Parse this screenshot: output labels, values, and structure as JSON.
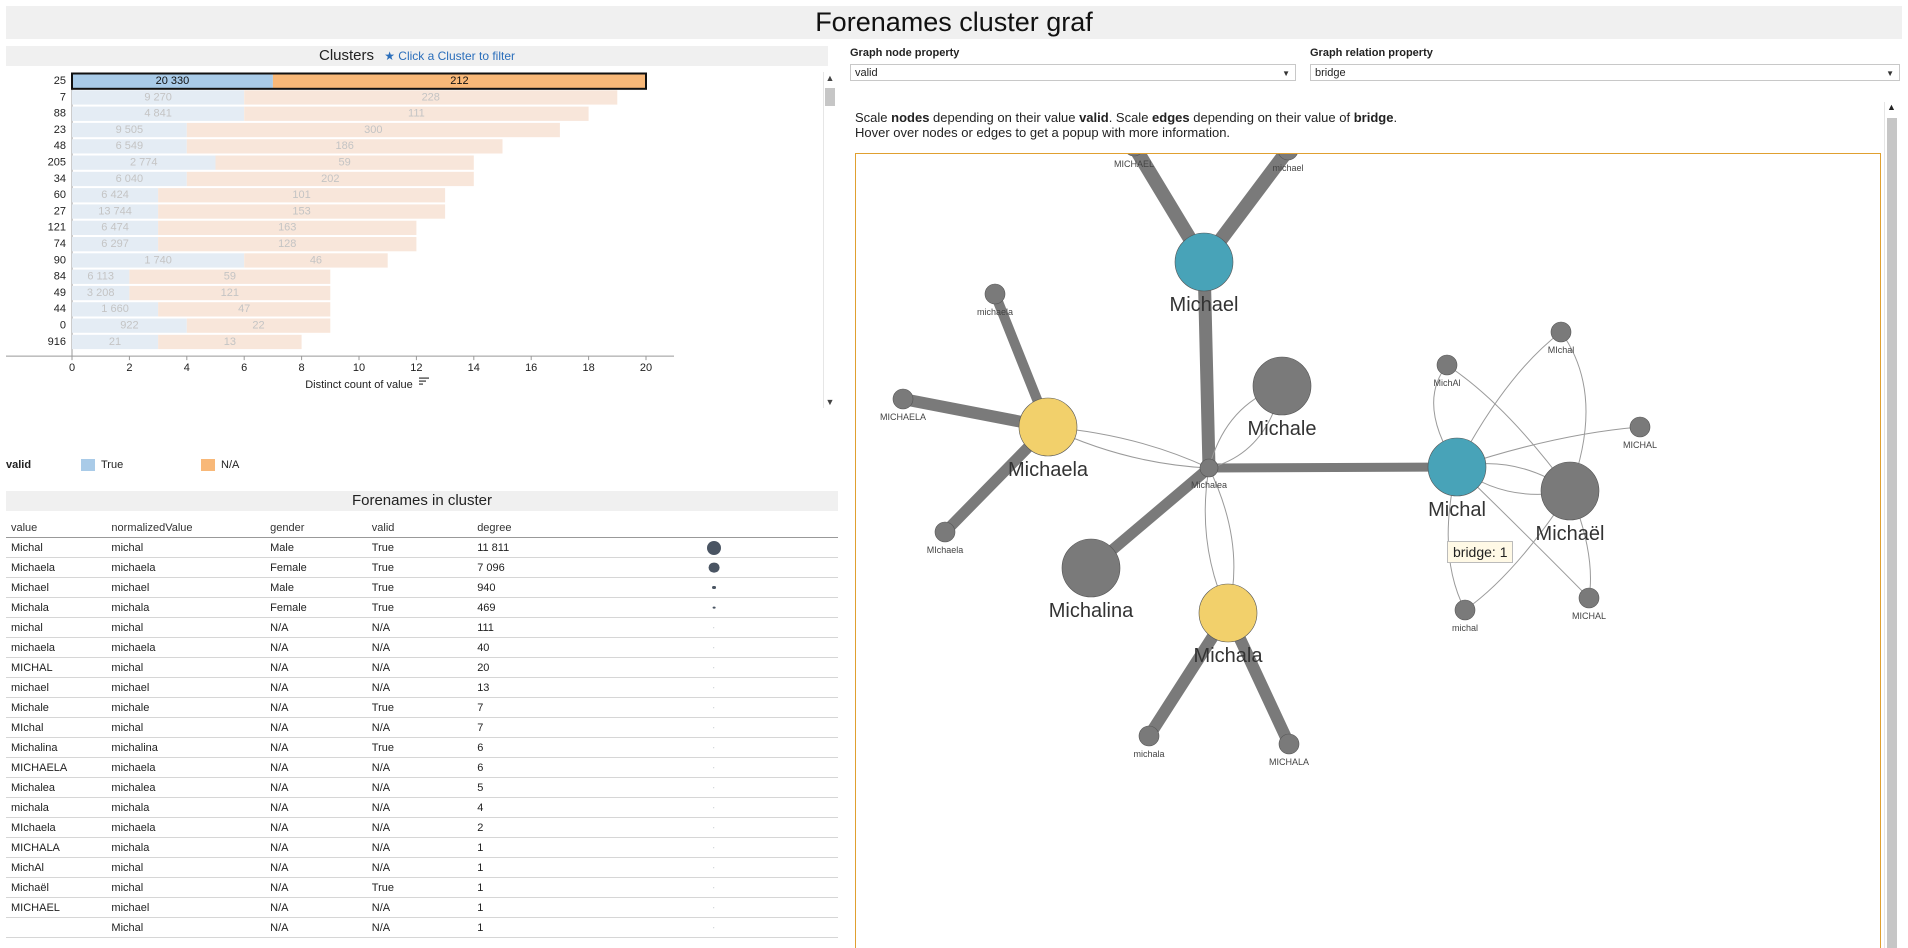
{
  "page": {
    "title": "Forenames cluster graf"
  },
  "clusters": {
    "title": "Clusters",
    "hint": "Click a Cluster to filter",
    "x_axis_label": "Distinct count of value",
    "legend_title": "valid",
    "legend": [
      {
        "label": "True",
        "color": "#a9cbe8"
      },
      {
        "label": "N/A",
        "color": "#f8b878"
      }
    ]
  },
  "chart_data": {
    "type": "bar",
    "orientation": "horizontal",
    "stacked": true,
    "categories": [
      "25",
      "7",
      "88",
      "23",
      "48",
      "205",
      "34",
      "60",
      "27",
      "121",
      "74",
      "90",
      "84",
      "49",
      "44",
      "0",
      "916"
    ],
    "series": [
      {
        "name": "True",
        "values": [
          7,
          6,
          6,
          4,
          4,
          5,
          4,
          3,
          3,
          3,
          3,
          6,
          2,
          2,
          3,
          4,
          3
        ],
        "labels": [
          "20 330",
          "9 270",
          "4 841",
          "9 505",
          "6 549",
          "2 774",
          "6 040",
          "6 424",
          "13 744",
          "6 474",
          "6 297",
          "1 740",
          "6 113",
          "3 208",
          "1 660",
          "922",
          "21"
        ]
      },
      {
        "name": "N/A",
        "values": [
          13,
          13,
          12,
          13,
          11,
          9,
          10,
          10,
          10,
          9,
          9,
          5,
          7,
          7,
          6,
          5,
          5
        ],
        "labels": [
          "212",
          "228",
          "111",
          "300",
          "186",
          "59",
          "202",
          "101",
          "153",
          "163",
          "128",
          "46",
          "59",
          "121",
          "47",
          "22",
          "13"
        ]
      }
    ],
    "selected_index": 0,
    "xlabel": "Distinct count of value",
    "xlim": [
      0,
      20
    ],
    "x_ticks": [
      0,
      2,
      4,
      6,
      8,
      10,
      12,
      14,
      16,
      18,
      20
    ],
    "colors": {
      "True": "#a9cbe8",
      "N/A": "#f8b878",
      "True_dim": "#e4ecf4",
      "N/A_dim": "#f8e6da"
    },
    "legend_position": "bottom-left"
  },
  "table": {
    "title": "Forenames in cluster",
    "columns": [
      "value",
      "normalizedValue",
      "gender",
      "valid",
      "degree"
    ],
    "rows": [
      {
        "value": "Michal",
        "norm": "michal",
        "gender": "Male",
        "valid": "True",
        "degree": "11 811",
        "dot": 11811
      },
      {
        "value": "Michaela",
        "norm": "michaela",
        "gender": "Female",
        "valid": "True",
        "degree": "7 096",
        "dot": 7096
      },
      {
        "value": "Michael",
        "norm": "michael",
        "gender": "Male",
        "valid": "True",
        "degree": "940",
        "dot": 940
      },
      {
        "value": "Michala",
        "norm": "michala",
        "gender": "Female",
        "valid": "True",
        "degree": "469",
        "dot": 469
      },
      {
        "value": "michal",
        "norm": "michal",
        "gender": "N/A",
        "valid": "N/A",
        "degree": "111",
        "dot": 111
      },
      {
        "value": "michaela",
        "norm": "michaela",
        "gender": "N/A",
        "valid": "N/A",
        "degree": "40",
        "dot": 40
      },
      {
        "value": "MICHAL",
        "norm": "michal",
        "gender": "N/A",
        "valid": "N/A",
        "degree": "20",
        "dot": 20
      },
      {
        "value": "michael",
        "norm": "michael",
        "gender": "N/A",
        "valid": "N/A",
        "degree": "13",
        "dot": 13
      },
      {
        "value": "Michale",
        "norm": "michale",
        "gender": "N/A",
        "valid": "True",
        "degree": "7",
        "dot": 7
      },
      {
        "value": "MIchal",
        "norm": "michal",
        "gender": "N/A",
        "valid": "N/A",
        "degree": "7",
        "dot": 7
      },
      {
        "value": "Michalina",
        "norm": "michalina",
        "gender": "N/A",
        "valid": "True",
        "degree": "6",
        "dot": 6
      },
      {
        "value": "MICHAELA",
        "norm": "michaela",
        "gender": "N/A",
        "valid": "N/A",
        "degree": "6",
        "dot": 6
      },
      {
        "value": "Michalea",
        "norm": "michalea",
        "gender": "N/A",
        "valid": "N/A",
        "degree": "5",
        "dot": 5
      },
      {
        "value": "michala",
        "norm": "michala",
        "gender": "N/A",
        "valid": "N/A",
        "degree": "4",
        "dot": 4
      },
      {
        "value": "MIchaela",
        "norm": "michaela",
        "gender": "N/A",
        "valid": "N/A",
        "degree": "2",
        "dot": 2
      },
      {
        "value": "MICHALA",
        "norm": "michala",
        "gender": "N/A",
        "valid": "N/A",
        "degree": "1",
        "dot": 1
      },
      {
        "value": "MichAl",
        "norm": "michal",
        "gender": "N/A",
        "valid": "N/A",
        "degree": "1",
        "dot": 1
      },
      {
        "value": "Michaël",
        "norm": "michal",
        "gender": "N/A",
        "valid": "True",
        "degree": "1",
        "dot": 1
      },
      {
        "value": "MICHAEL",
        "norm": "michael",
        "gender": "N/A",
        "valid": "N/A",
        "degree": "1",
        "dot": 1
      },
      {
        "value": "",
        "norm": "Michal",
        "gender": "N/A",
        "valid": "N/A",
        "degree": "1",
        "dot": 1
      }
    ]
  },
  "graph": {
    "node_property_label": "Graph node property",
    "node_property_value": "valid",
    "relation_property_label": "Graph relation property",
    "relation_property_value": "bridge",
    "description": {
      "p1": "Scale ",
      "nodes": "nodes",
      "p2": " depending on their value ",
      "valid": "valid",
      "p3": ". Scale ",
      "edges": "edges",
      "p4": " depending on their value of ",
      "bridge": "bridge",
      "p5": ".",
      "line2": "Hover over nodes or edges to get a popup with more information."
    },
    "tooltip": "bridge: 1",
    "colors": {
      "teal": "#48a3b8",
      "yellow": "#f2d06b",
      "gray": "#7a7a7a",
      "edge": "#7a7a7a",
      "thin_edge": "#9a9a9a"
    },
    "labels": {
      "Michael": "Michael",
      "Michaela": "Michaela",
      "Michale": "Michale",
      "Michal": "Michal",
      "Michaël": "Michaël",
      "Michalina": "Michalina",
      "Michala": "Michala",
      "MICHAEL": "MICHAEL",
      "michael": "michael",
      "michaela": "michaela",
      "MICHAELA": "MICHAELA",
      "MIchaela": "MIchaela",
      "Michalea": "Michalea",
      "michala": "michala",
      "MICHALA": "MICHALA",
      "MichAl": "MichAl",
      "MIchal": "MIchal",
      "MICHAL": "MICHAL",
      "michal": "michal"
    }
  }
}
